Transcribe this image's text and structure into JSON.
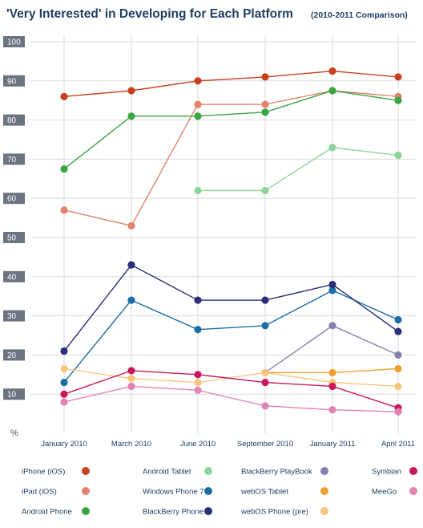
{
  "chart_data": {
    "type": "line",
    "title": "'Very Interested' in Developing for Each Platform",
    "subtitle": "(2010-2011 Comparison)",
    "ylabel": "%",
    "ylim": [
      0,
      100
    ],
    "yticks": [
      10,
      20,
      30,
      40,
      50,
      60,
      70,
      80,
      90,
      100
    ],
    "categories": [
      "January 2010",
      "March 2010",
      "June 2010",
      "September 2010",
      "January 2011",
      "April 2011"
    ],
    "grid": true,
    "legend_position": "bottom",
    "series": [
      {
        "name": "iPhone (iOS)",
        "color": "#c8401e",
        "values": [
          86,
          87.5,
          90,
          91,
          92.5,
          91
        ]
      },
      {
        "name": "iPad (iOS)",
        "color": "#e0826e",
        "values": [
          57,
          53,
          84,
          84,
          87.5,
          86
        ]
      },
      {
        "name": "Android Phone",
        "color": "#3aa543",
        "values": [
          67.5,
          81,
          81,
          82,
          87.5,
          85
        ]
      },
      {
        "name": "Android Tablet",
        "color": "#8fd49b",
        "values": [
          null,
          null,
          62,
          62,
          73,
          71
        ]
      },
      {
        "name": "Windows Phone 7",
        "color": "#1b6ea5",
        "values": [
          13,
          34,
          26.5,
          27.5,
          36.5,
          29
        ]
      },
      {
        "name": "BlackBerry Phone",
        "color": "#2b2f7a",
        "values": [
          21,
          43,
          34,
          34,
          38,
          26
        ]
      },
      {
        "name": "BlackBerry PlayBook",
        "color": "#8581ae",
        "values": [
          null,
          null,
          null,
          15.5,
          27.5,
          20
        ]
      },
      {
        "name": "webOS Tablet",
        "color": "#f0a030",
        "values": [
          null,
          null,
          null,
          15.5,
          15.5,
          16.5
        ]
      },
      {
        "name": "webOS Phone (pre)",
        "color": "#f5c67e",
        "values": [
          16.5,
          14,
          13,
          15.5,
          13,
          12
        ]
      },
      {
        "name": "Symbian",
        "color": "#c8175e",
        "values": [
          10,
          16,
          15,
          13,
          12,
          6.5
        ]
      },
      {
        "name": "MeeGo",
        "color": "#e283b4",
        "values": [
          8,
          12,
          11,
          7,
          6,
          5.5
        ]
      }
    ]
  }
}
